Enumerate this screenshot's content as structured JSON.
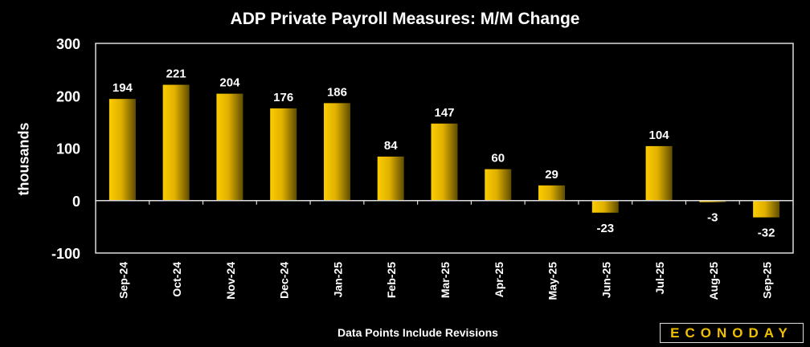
{
  "chart_data": {
    "type": "bar",
    "title": "ADP Private Payroll Measures: M/M Change",
    "xlabel": "",
    "ylabel": "thousands",
    "footnote": "Data Points Include Revisions",
    "ylim": [
      -100,
      300
    ],
    "yticks": [
      -100,
      0,
      100,
      200,
      300
    ],
    "categories": [
      "Sep-24",
      "Oct-24",
      "Nov-24",
      "Dec-24",
      "Jan-25",
      "Feb-25",
      "Mar-25",
      "Apr-25",
      "May-25",
      "Jun-25",
      "Jul-25",
      "Aug-25",
      "Sep-25"
    ],
    "values": [
      194,
      221,
      204,
      176,
      186,
      84,
      147,
      60,
      29,
      -23,
      104,
      -3,
      -32
    ],
    "bar_color": "#f8c800",
    "grid": false
  },
  "logo": {
    "text": "ECONODAY",
    "mark": "®"
  }
}
